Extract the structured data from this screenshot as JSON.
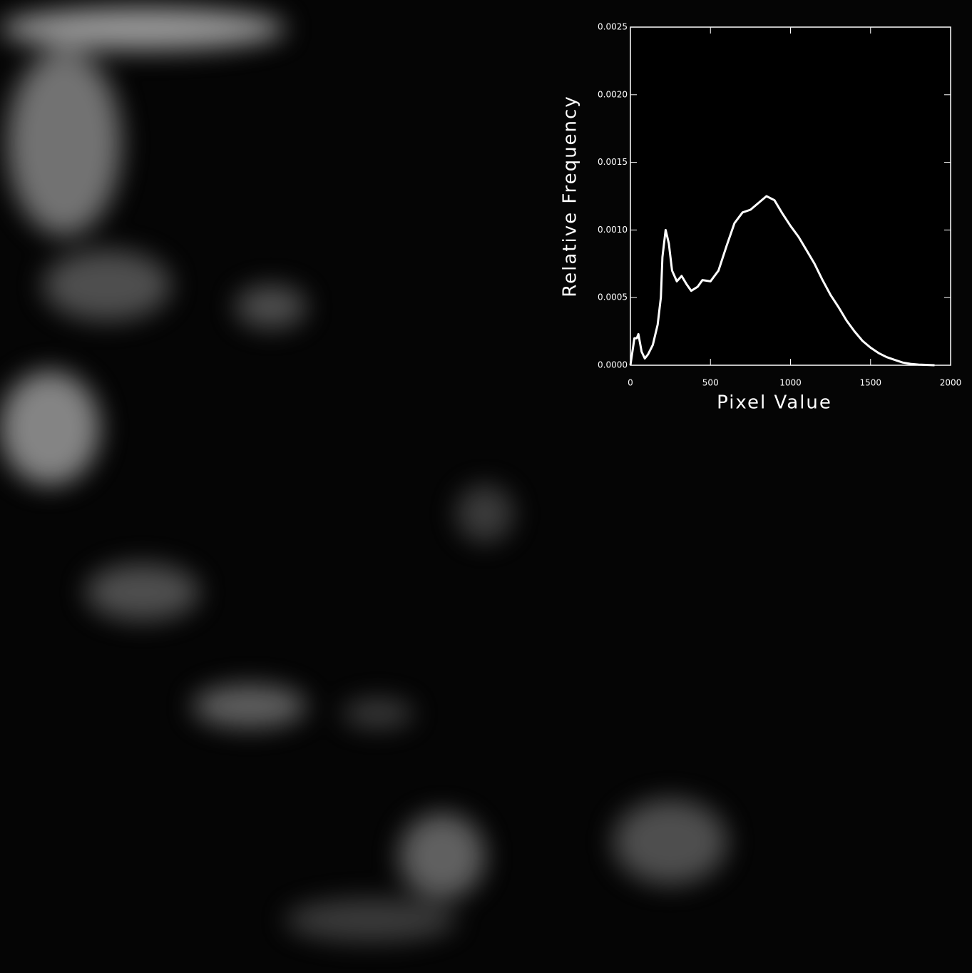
{
  "chart_data": {
    "type": "line",
    "x_label": "Pixel Value",
    "y_label": "Relative Frequency",
    "x": [
      0,
      25,
      40,
      50,
      70,
      90,
      110,
      140,
      170,
      190,
      200,
      220,
      240,
      260,
      290,
      320,
      350,
      380,
      420,
      450,
      500,
      550,
      600,
      650,
      700,
      750,
      800,
      850,
      900,
      950,
      1000,
      1050,
      1100,
      1150,
      1200,
      1250,
      1300,
      1350,
      1400,
      1450,
      1500,
      1550,
      1600,
      1650,
      1700,
      1750,
      1800,
      1900
    ],
    "values": [
      0,
      0.0002,
      0.0002,
      0.00023,
      0.0001,
      5e-05,
      8e-05,
      0.00015,
      0.0003,
      0.0005,
      0.0008,
      0.001,
      0.0009,
      0.0007,
      0.00062,
      0.00066,
      0.0006,
      0.00055,
      0.00058,
      0.00063,
      0.00062,
      0.0007,
      0.00088,
      0.00105,
      0.00113,
      0.00115,
      0.0012,
      0.00125,
      0.00122,
      0.00112,
      0.00103,
      0.00095,
      0.00085,
      0.00075,
      0.00063,
      0.00052,
      0.00043,
      0.00033,
      0.00025,
      0.00018,
      0.00013,
      9e-05,
      6e-05,
      4e-05,
      2e-05,
      1e-05,
      5e-06,
      0
    ],
    "color": "#ffffff",
    "xlim": [
      0,
      2000
    ],
    "xticks": [
      0,
      500,
      1000,
      1500,
      2000
    ],
    "ylim": [
      0,
      0.0025
    ],
    "yticks": [
      {
        "value": 0,
        "label": "0.0000"
      },
      0.0005,
      {
        "value": 0.001,
        "label": "0.0010"
      },
      0.0015,
      {
        "value": 0.002,
        "label": "0.0020"
      },
      0.0025
    ]
  }
}
